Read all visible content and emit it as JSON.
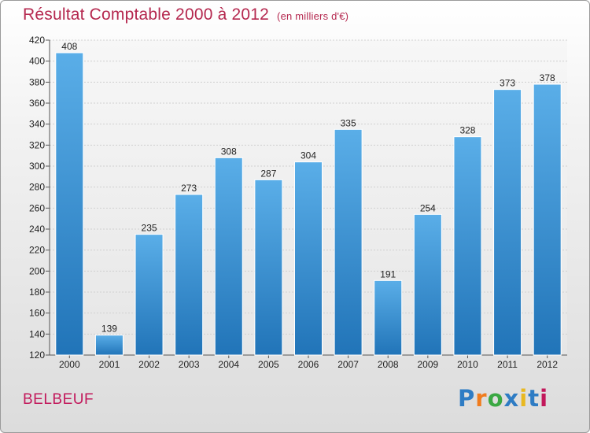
{
  "chart_data": {
    "type": "bar",
    "title": "Résultat Comptable 2000 à 2012",
    "subtitle": "(en milliers d'€)",
    "categories": [
      "2000",
      "2001",
      "2002",
      "2003",
      "2004",
      "2005",
      "2006",
      "2007",
      "2008",
      "2009",
      "2010",
      "2011",
      "2012"
    ],
    "values": [
      408,
      139,
      235,
      273,
      308,
      287,
      304,
      335,
      191,
      254,
      328,
      373,
      378
    ],
    "xlabel": "",
    "ylabel": "",
    "ylim": [
      120,
      420
    ],
    "yticks": [
      120,
      140,
      160,
      180,
      200,
      220,
      240,
      260,
      280,
      300,
      320,
      340,
      360,
      380,
      400,
      420
    ],
    "grid": true,
    "bar_color": "#3a8fd6"
  },
  "footer": {
    "town": "BELBEUF",
    "brand": "Proxiti",
    "brand_letters": [
      "P",
      "r",
      "o",
      "x",
      "i",
      "t",
      "i"
    ],
    "brand_colors": [
      "#2e7cc4",
      "#f07c1e",
      "#3aa843",
      "#2e7cc4",
      "#e8b820",
      "#2e7cc4",
      "#c2185b"
    ]
  }
}
